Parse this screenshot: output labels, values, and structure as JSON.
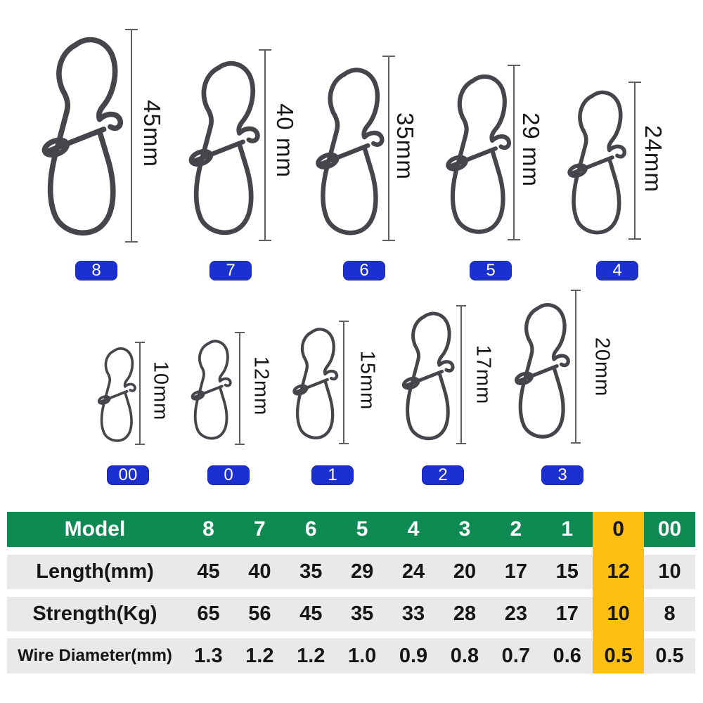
{
  "colors": {
    "green": "#0e8a52",
    "yellow": "#fcbf12",
    "blue": "#1c30d1",
    "row_gray": "#e9e9e9",
    "wire": "#45454b",
    "dim": "#5f5f5f",
    "text_dark": "#161616"
  },
  "diagram": {
    "row1": [
      {
        "model": "8",
        "length": "45mm"
      },
      {
        "model": "7",
        "length": "40 mm"
      },
      {
        "model": "6",
        "length": "35mm"
      },
      {
        "model": "5",
        "length": "29 mm"
      },
      {
        "model": "4",
        "length": "24mm"
      }
    ],
    "row2": [
      {
        "model": "00",
        "length": "10mm"
      },
      {
        "model": "0",
        "length": "12mm"
      },
      {
        "model": "1",
        "length": "15mm"
      },
      {
        "model": "2",
        "length": "17mm"
      },
      {
        "model": "3",
        "length": "20mm"
      }
    ]
  },
  "table": {
    "header_label": "Model",
    "columns": [
      "8",
      "7",
      "6",
      "5",
      "4",
      "3",
      "2",
      "1",
      "0",
      "00"
    ],
    "highlight_index": 8,
    "rows": [
      {
        "label": "Length(mm)",
        "values": [
          "45",
          "40",
          "35",
          "29",
          "24",
          "20",
          "17",
          "15",
          "12",
          "10"
        ]
      },
      {
        "label": "Strength(Kg)",
        "values": [
          "65",
          "56",
          "45",
          "35",
          "33",
          "28",
          "23",
          "17",
          "10",
          "8"
        ]
      },
      {
        "label": "Wire Diameter(mm)",
        "values": [
          "1.3",
          "1.2",
          "1.2",
          "1.0",
          "0.9",
          "0.8",
          "0.7",
          "0.6",
          "0.5",
          "0.5"
        ]
      }
    ]
  }
}
